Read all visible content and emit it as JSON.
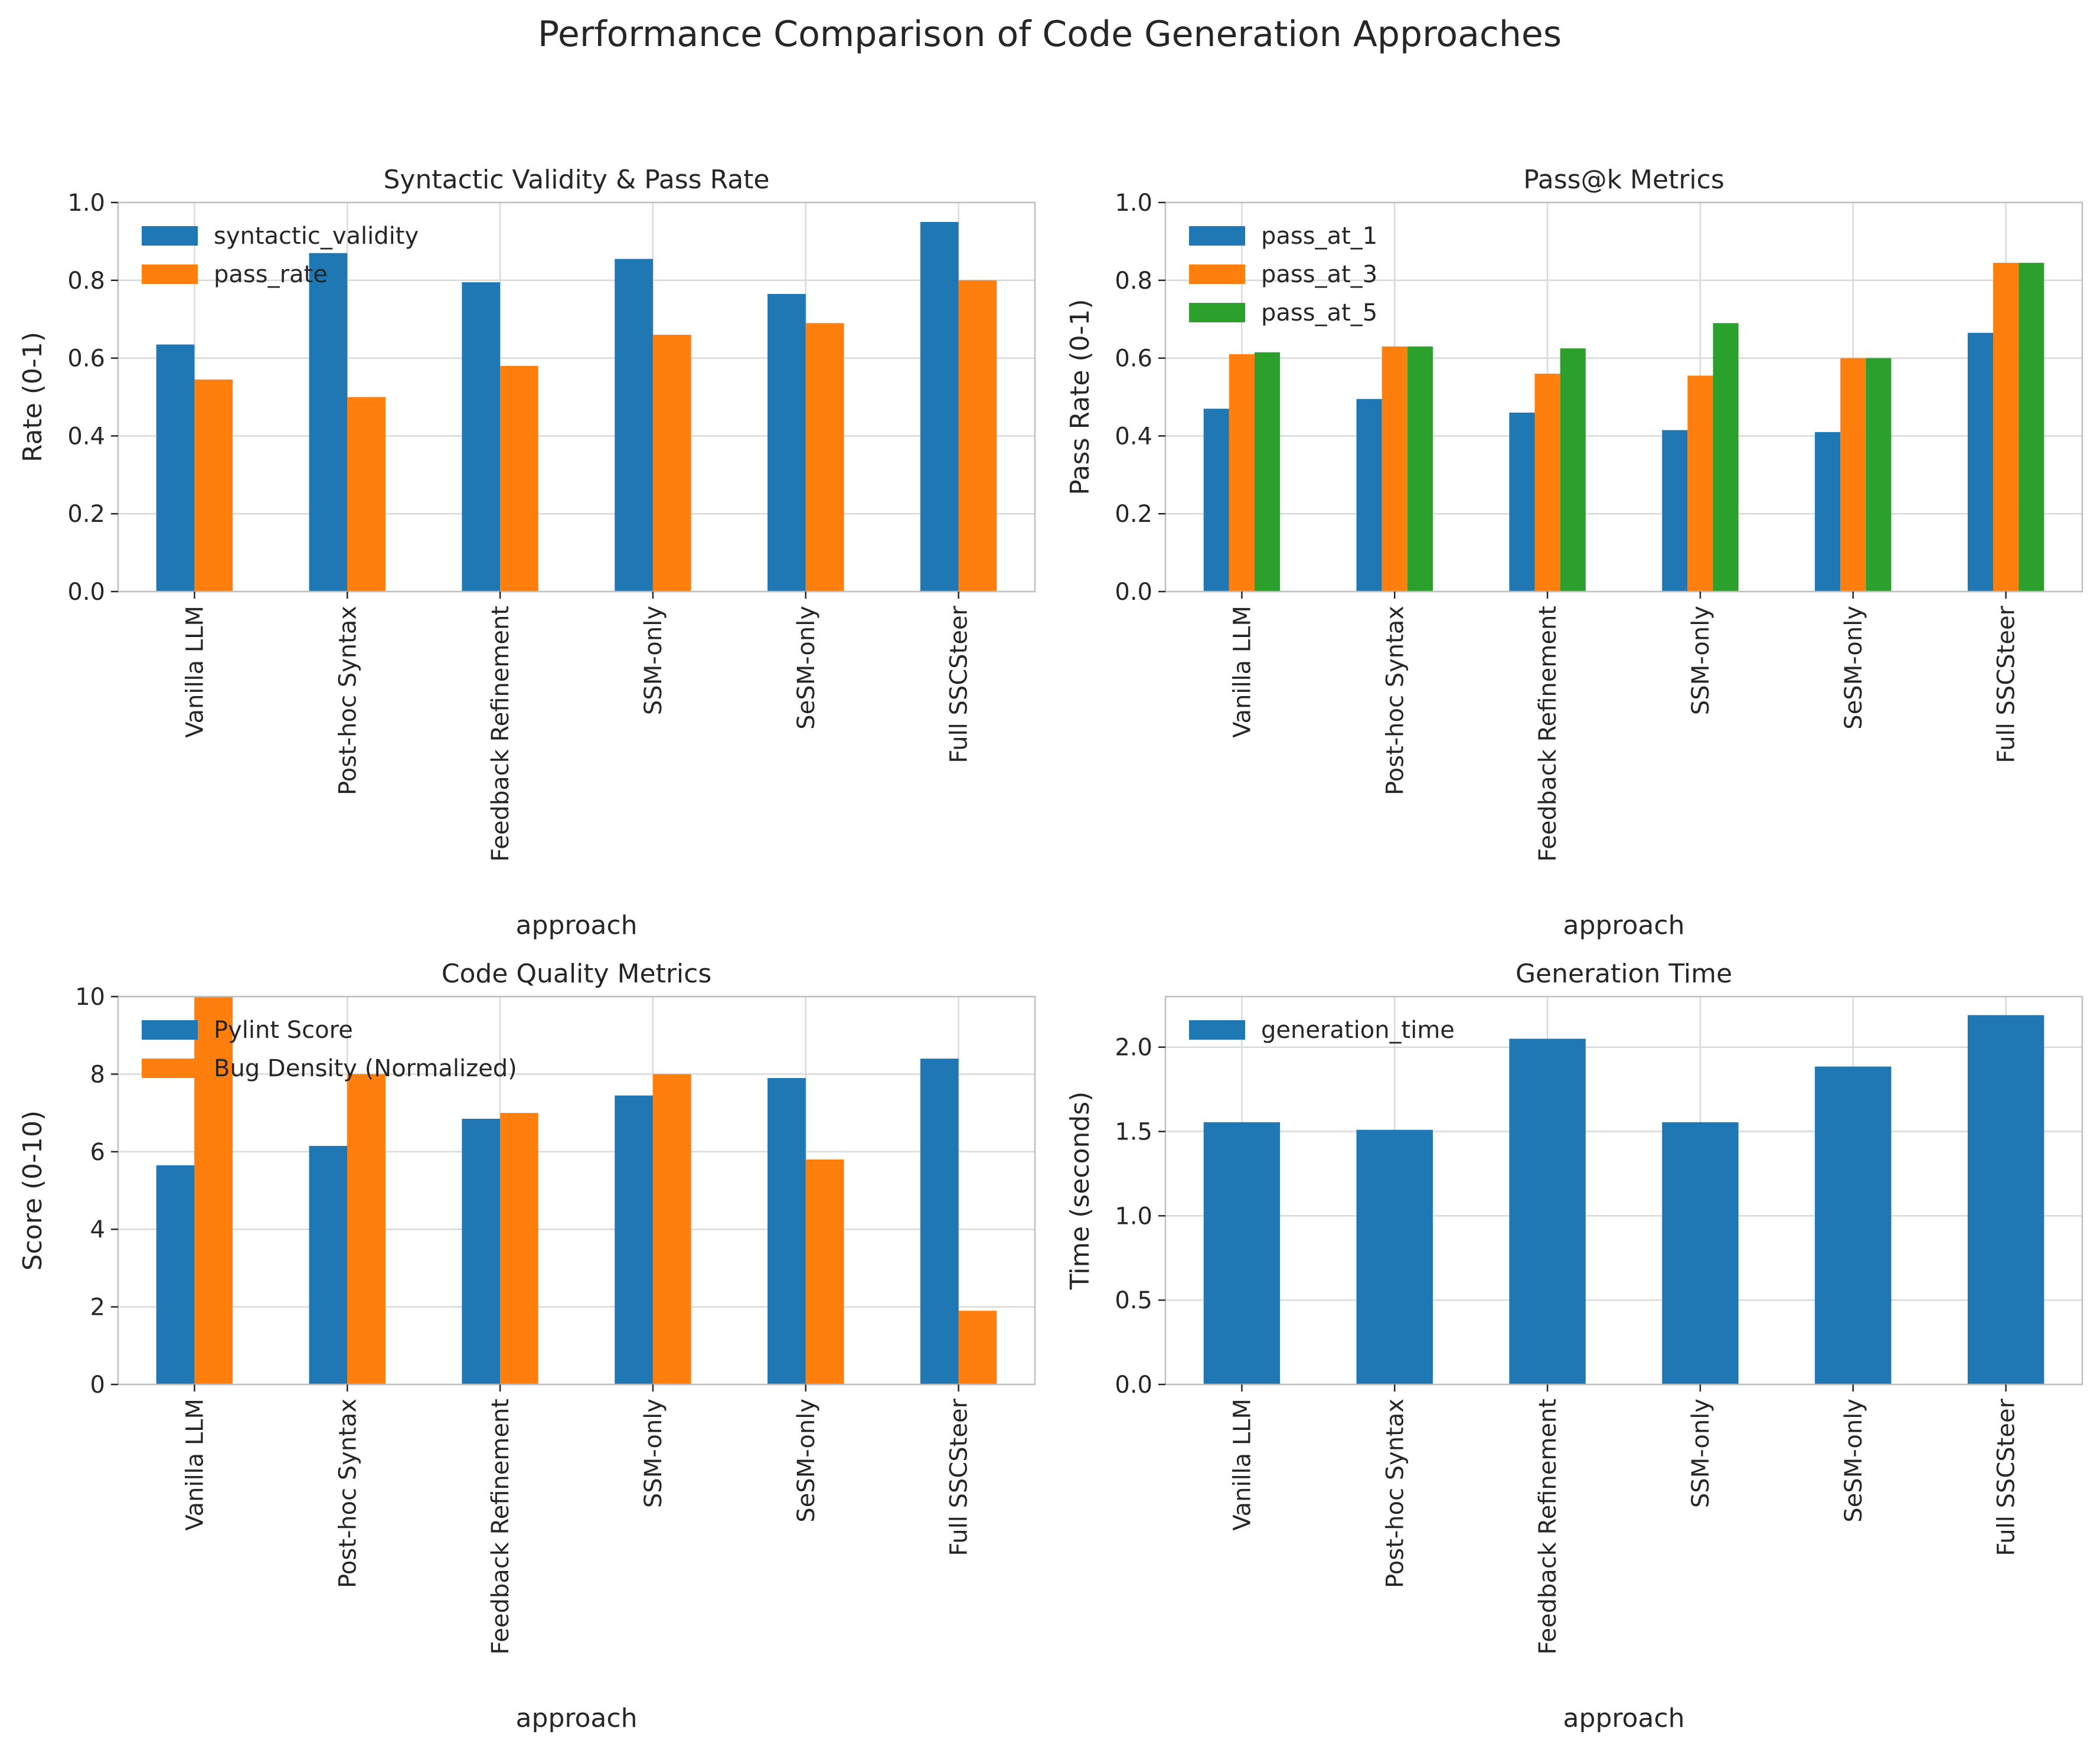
{
  "figure": {
    "title": "Performance Comparison of Code Generation Approaches"
  },
  "chart_data": [
    {
      "type": "bar",
      "title": "Syntactic Validity & Pass Rate",
      "xlabel": "approach",
      "ylabel": "Rate (0-1)",
      "ylim": [
        0,
        1.0
      ],
      "yticks": [
        "0.0",
        "0.2",
        "0.4",
        "0.6",
        "0.8",
        "1.0"
      ],
      "ytick_values": [
        0,
        0.2,
        0.4,
        0.6,
        0.8,
        1.0
      ],
      "grid": true,
      "legend_position": "top-left",
      "categories": [
        "Vanilla LLM",
        "Post-hoc Syntax",
        "Feedback Refinement",
        "SSM-only",
        "SeSM-only",
        "Full SSCSteer"
      ],
      "series": [
        {
          "name": "syntactic_validity",
          "color": "#1f77b4",
          "values": [
            0.635,
            0.87,
            0.795,
            0.855,
            0.765,
            0.95
          ]
        },
        {
          "name": "pass_rate",
          "color": "#ff7f0e",
          "values": [
            0.545,
            0.5,
            0.58,
            0.66,
            0.69,
            0.8
          ]
        }
      ]
    },
    {
      "type": "bar",
      "title": "Pass@k Metrics",
      "xlabel": "approach",
      "ylabel": "Pass Rate (0-1)",
      "ylim": [
        0,
        1.0
      ],
      "yticks": [
        "0.0",
        "0.2",
        "0.4",
        "0.6",
        "0.8",
        "1.0"
      ],
      "ytick_values": [
        0,
        0.2,
        0.4,
        0.6,
        0.8,
        1.0
      ],
      "grid": true,
      "legend_position": "top-left",
      "categories": [
        "Vanilla LLM",
        "Post-hoc Syntax",
        "Feedback Refinement",
        "SSM-only",
        "SeSM-only",
        "Full SSCSteer"
      ],
      "series": [
        {
          "name": "pass_at_1",
          "color": "#1f77b4",
          "values": [
            0.47,
            0.495,
            0.46,
            0.415,
            0.41,
            0.665
          ]
        },
        {
          "name": "pass_at_3",
          "color": "#ff7f0e",
          "values": [
            0.61,
            0.63,
            0.56,
            0.555,
            0.6,
            0.845
          ]
        },
        {
          "name": "pass_at_5",
          "color": "#2ca02c",
          "values": [
            0.615,
            0.63,
            0.625,
            0.69,
            0.6,
            0.845
          ]
        }
      ]
    },
    {
      "type": "bar",
      "title": "Code Quality Metrics",
      "xlabel": "approach",
      "ylabel": "Score (0-10)",
      "ylim": [
        0,
        10
      ],
      "yticks": [
        "0",
        "2",
        "4",
        "6",
        "8",
        "10"
      ],
      "ytick_values": [
        0,
        2,
        4,
        6,
        8,
        10
      ],
      "grid": true,
      "legend_position": "top-left",
      "categories": [
        "Vanilla LLM",
        "Post-hoc Syntax",
        "Feedback Refinement",
        "SSM-only",
        "SeSM-only",
        "Full SSCSteer"
      ],
      "series": [
        {
          "name": "Pylint Score",
          "color": "#1f77b4",
          "values": [
            5.65,
            6.15,
            6.85,
            7.45,
            7.9,
            8.4
          ]
        },
        {
          "name": "Bug Density (Normalized)",
          "color": "#ff7f0e",
          "values": [
            10.0,
            8.0,
            7.0,
            8.0,
            5.8,
            1.9
          ]
        }
      ]
    },
    {
      "type": "bar",
      "title": "Generation Time",
      "xlabel": "approach",
      "ylabel": "Time (seconds)",
      "ylim": [
        0,
        2.3
      ],
      "yticks": [
        "0.0",
        "0.5",
        "1.0",
        "1.5",
        "2.0"
      ],
      "ytick_values": [
        0,
        0.5,
        1.0,
        1.5,
        2.0
      ],
      "grid": true,
      "legend_position": "top-left",
      "categories": [
        "Vanilla LLM",
        "Post-hoc Syntax",
        "Feedback Refinement",
        "SSM-only",
        "SeSM-only",
        "Full SSCSteer"
      ],
      "series": [
        {
          "name": "generation_time",
          "color": "#1f77b4",
          "values": [
            1.555,
            1.51,
            2.05,
            1.555,
            1.885,
            2.19
          ]
        }
      ]
    }
  ]
}
